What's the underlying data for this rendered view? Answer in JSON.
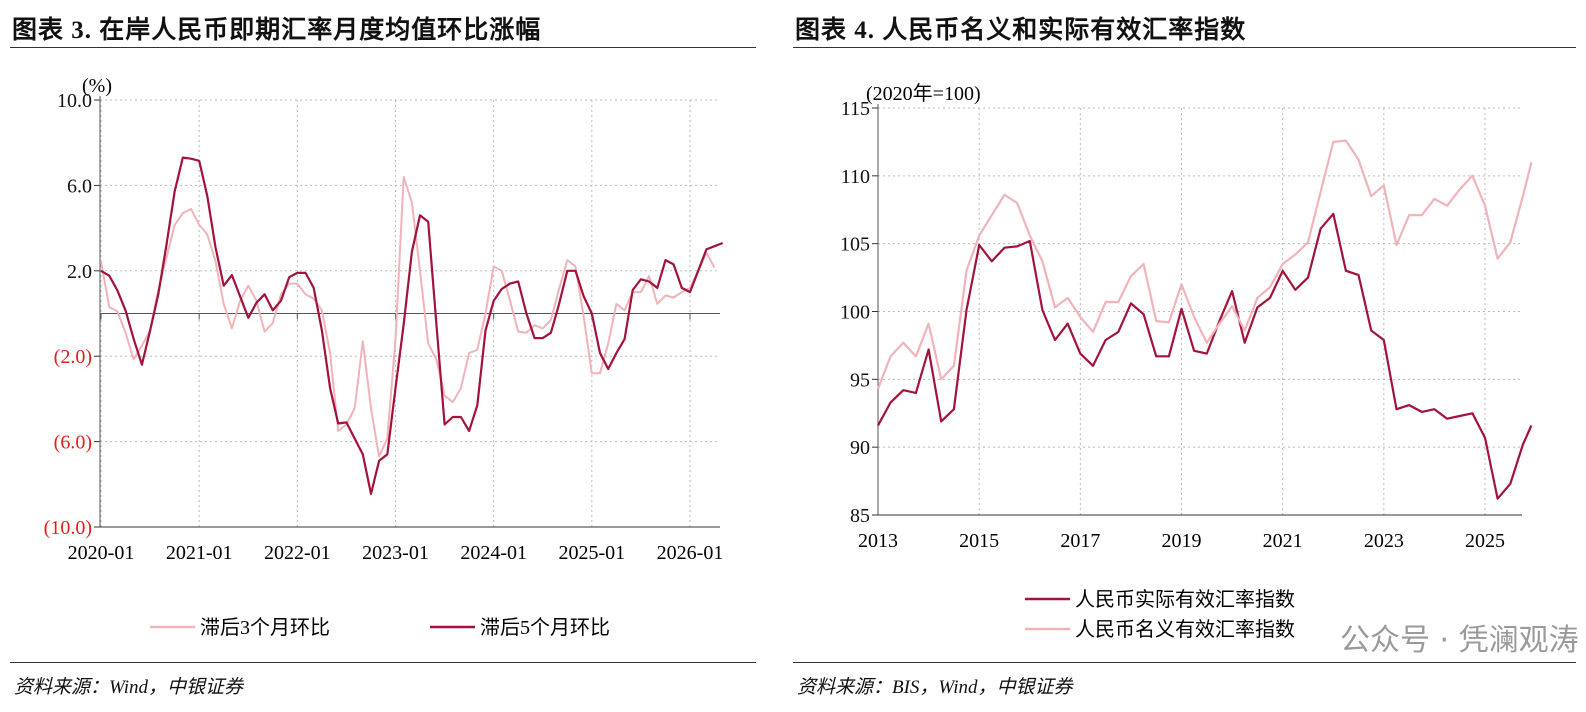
{
  "colors": {
    "real": "#a3123a",
    "nominal": "#f0b3b8",
    "negative_label": "#e0201c",
    "grid": "#bbbbbb"
  },
  "watermark": "公众号 · 凭澜观涛",
  "chart_data": [
    {
      "type": "line",
      "title": "图表 3. 在岸人民币即期汇率月度均值环比涨幅",
      "ylabel": "(%)",
      "source": "资料来源：Wind，中银证券",
      "ylim": [
        -10,
        10
      ],
      "yticks": [
        10,
        6,
        2,
        -2,
        -6,
        -10
      ],
      "ytick_labels": [
        "10.0",
        "6.0",
        "2.0",
        "(2.0)",
        "(6.0)",
        "(10.0)"
      ],
      "xticks": [
        "2020-01",
        "2021-01",
        "2022-01",
        "2023-01",
        "2024-01",
        "2025-01",
        "2026-01"
      ],
      "grid": true,
      "legend": "bottom",
      "start": "2020-01",
      "series": [
        {
          "name": "滞后3个月环比",
          "color": "#f0b3b8",
          "values": [
            2.45,
            0.3,
            0.1,
            -0.9,
            -2.15,
            -1.5,
            -0.8,
            1.1,
            2.6,
            4.15,
            4.7,
            4.9,
            4.15,
            3.7,
            2.45,
            0.45,
            -0.7,
            0.6,
            1.3,
            0.6,
            -0.85,
            -0.45,
            0.9,
            1.4,
            1.4,
            0.9,
            0.7,
            0.15,
            -1.85,
            -5.5,
            -5.2,
            -4.45,
            -1.3,
            -4.45,
            -6.7,
            -5.85,
            -1.2,
            6.4,
            5.2,
            2.0,
            -1.4,
            -2.15,
            -3.85,
            -4.15,
            -3.5,
            -1.85,
            -1.7,
            0,
            2.2,
            2.0,
            0.6,
            -0.85,
            -0.9,
            -0.55,
            -0.7,
            -0.3,
            1.15,
            2.5,
            2.2,
            -0.15,
            -2.8,
            -2.8,
            -1.4,
            0.45,
            0.15,
            1.0,
            1.0,
            1.75,
            0.45,
            0.85,
            0.75,
            1.0,
            1.2,
            2.0,
            2.85,
            2.15
          ]
        },
        {
          "name": "滞后5个月环比",
          "color": "#a3123a",
          "values": [
            2.0,
            1.77,
            1.08,
            0.15,
            -1.2,
            -2.4,
            -0.8,
            0.9,
            3.2,
            5.7,
            7.3,
            7.25,
            7.15,
            5.5,
            3.1,
            1.3,
            1.8,
            0.8,
            -0.2,
            0.5,
            0.9,
            0.15,
            0.6,
            1.7,
            1.9,
            1.9,
            1.2,
            -0.8,
            -3.5,
            -5.15,
            -5.1,
            -5.85,
            -6.6,
            -8.45,
            -6.9,
            -6.6,
            -3.5,
            -0.5,
            2.9,
            4.6,
            4.3,
            -0.5,
            -5.2,
            -4.85,
            -4.85,
            -5.5,
            -4.3,
            -0.8,
            0.6,
            1.15,
            1.4,
            1.5,
            0,
            -1.15,
            -1.15,
            -0.9,
            0.45,
            2.0,
            2.0,
            0.8,
            0,
            -1.85,
            -2.6,
            -1.85,
            -1.2,
            1.1,
            1.6,
            1.5,
            1.2,
            2.5,
            2.3,
            1.2,
            1.0,
            2.0,
            3.0,
            3.15,
            3.3
          ]
        }
      ]
    },
    {
      "type": "line",
      "title": "图表 4. 人民币名义和实际有效汇率指数",
      "ylabel": "(2020年=100)",
      "source": "资料来源：BIS，Wind，中银证券",
      "ylim": [
        85,
        115
      ],
      "yticks": [
        115,
        110,
        105,
        100,
        95,
        90,
        85
      ],
      "ytick_labels": [
        "115",
        "110",
        "105",
        "100",
        "95",
        "90",
        "85"
      ],
      "xticks": [
        "2013",
        "2015",
        "2017",
        "2019",
        "2021",
        "2023",
        "2025"
      ],
      "grid": true,
      "legend": "bottom",
      "x": [
        "2013-01",
        "2013-04",
        "2013-07",
        "2013-10",
        "2014-01",
        "2014-04",
        "2014-07",
        "2014-10",
        "2015-01",
        "2015-04",
        "2015-07",
        "2015-10",
        "2016-01",
        "2016-04",
        "2016-07",
        "2016-10",
        "2017-01",
        "2017-04",
        "2017-07",
        "2017-10",
        "2018-01",
        "2018-04",
        "2018-07",
        "2018-10",
        "2019-01",
        "2019-04",
        "2019-07",
        "2019-10",
        "2020-01",
        "2020-04",
        "2020-07",
        "2020-10",
        "2021-01",
        "2021-04",
        "2021-07",
        "2021-10",
        "2022-01",
        "2022-04",
        "2022-07",
        "2022-10",
        "2023-01",
        "2023-04",
        "2023-07",
        "2023-10",
        "2024-01",
        "2024-04",
        "2024-07",
        "2024-10",
        "2025-01",
        "2025-04",
        "2025-07",
        "2025-10",
        "2025-12"
      ],
      "series": [
        {
          "name": "人民币实际有效汇率指数",
          "color": "#a3123a",
          "values": [
            91.6,
            93.3,
            94.2,
            94.0,
            97.2,
            91.9,
            92.8,
            100.1,
            104.9,
            103.7,
            104.7,
            104.8,
            105.2,
            100.1,
            97.9,
            99.1,
            96.9,
            96.0,
            97.9,
            98.5,
            100.6,
            99.8,
            96.7,
            96.7,
            100.2,
            97.1,
            96.9,
            99.3,
            101.5,
            97.7,
            100.3,
            101.0,
            103.0,
            101.6,
            102.5,
            106.1,
            107.2,
            103.0,
            102.7,
            98.6,
            97.9,
            92.8,
            93.1,
            92.6,
            92.8,
            92.1,
            92.3,
            92.5,
            90.7,
            86.2,
            87.3,
            90.2,
            91.6
          ]
        },
        {
          "name": "人民币名义有效汇率指数",
          "color": "#f0b3b8",
          "values": [
            94.3,
            96.7,
            97.7,
            96.7,
            99.1,
            95.0,
            96.0,
            103.0,
            105.6,
            107.1,
            108.6,
            108.0,
            105.6,
            103.7,
            100.3,
            101.0,
            99.6,
            98.5,
            100.7,
            100.7,
            102.6,
            103.5,
            99.3,
            99.2,
            102.0,
            99.6,
            97.7,
            99.1,
            100.4,
            98.6,
            101.0,
            101.8,
            103.5,
            104.2,
            105.1,
            108.8,
            112.5,
            112.6,
            111.2,
            108.5,
            109.3,
            104.9,
            107.1,
            107.1,
            108.3,
            107.8,
            109.0,
            110.0,
            107.8,
            103.9,
            105.1,
            108.5,
            111.0
          ]
        }
      ]
    }
  ]
}
